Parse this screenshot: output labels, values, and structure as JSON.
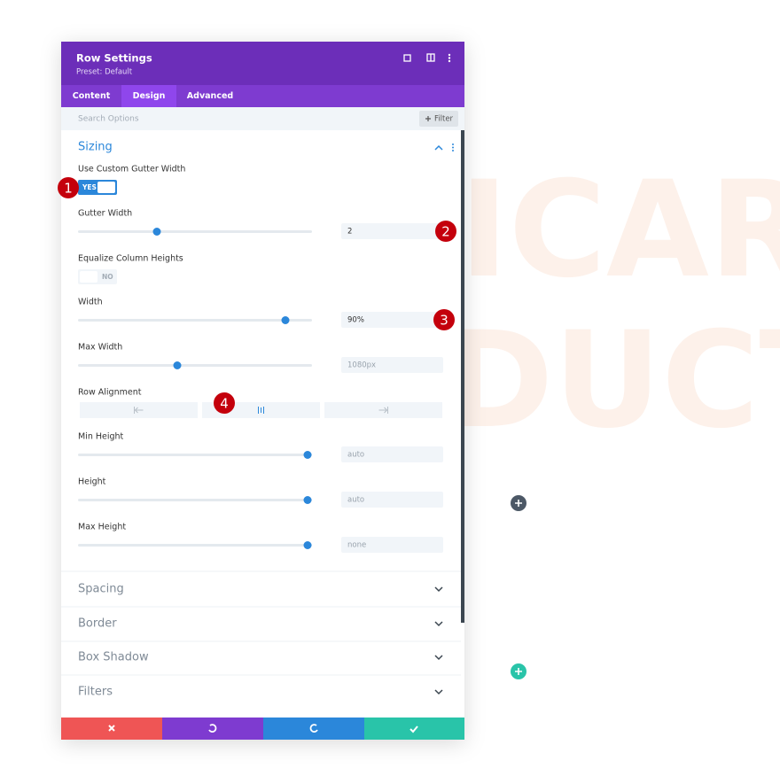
{
  "header": {
    "title": "Row Settings",
    "preset": "Preset: Default"
  },
  "tabs": [
    "Content",
    "Design",
    "Advanced"
  ],
  "search": {
    "placeholder": "Search Options",
    "filter": "Filter"
  },
  "section": {
    "title": "Sizing",
    "fields": [
      {
        "label": "Use Custom Gutter Width",
        "toggle": "YES"
      },
      {
        "label": "Gutter Width",
        "value": "2"
      },
      {
        "label": "Equalize Column Heights",
        "toggle": "NO"
      },
      {
        "label": "Width",
        "value": "90%"
      },
      {
        "label": "Max Width",
        "value": "1080px"
      },
      {
        "label": "Row Alignment"
      },
      {
        "label": "Min Height",
        "value": "auto"
      },
      {
        "label": "Height",
        "value": "auto"
      },
      {
        "label": "Max Height",
        "value": "none"
      }
    ]
  },
  "collapsed": [
    "Spacing",
    "Border",
    "Box Shadow",
    "Filters"
  ],
  "badges": [
    "1",
    "2",
    "3",
    "4"
  ],
  "background_text": [
    "ICAR",
    "DUCT"
  ]
}
